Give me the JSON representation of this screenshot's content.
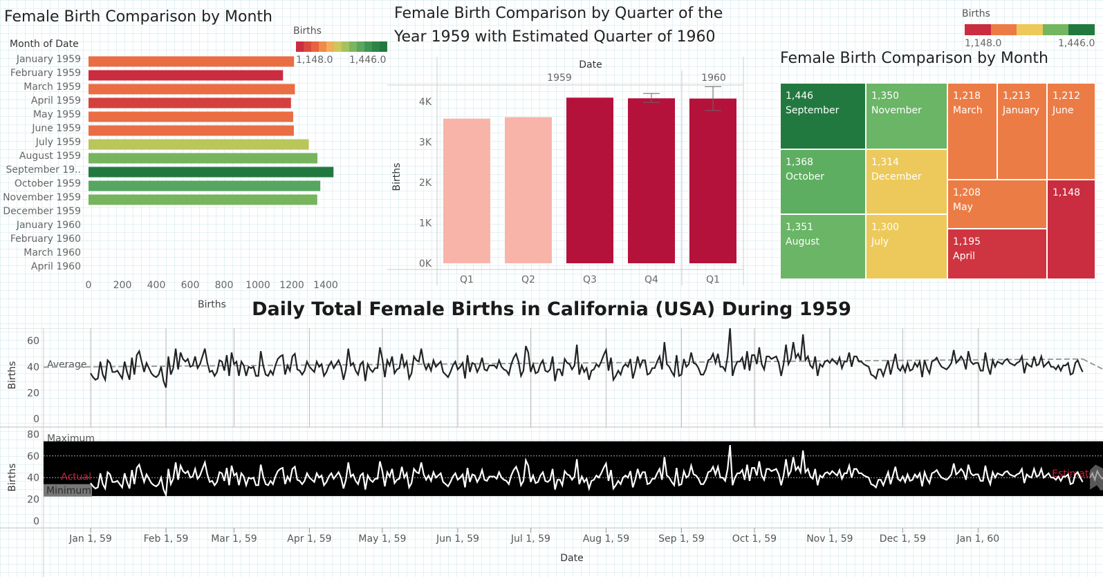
{
  "month_chart": {
    "title": "Female Birth Comparison by Month",
    "axis_header": "Month of Date",
    "legend_title": "Births",
    "legend_min": "1,148.0",
    "legend_max": "1,446.0",
    "xlabel": "Births",
    "ticks": [
      "0",
      "200",
      "400",
      "600",
      "800",
      "1000",
      "1200",
      "1400"
    ]
  },
  "quarter_chart": {
    "title_line1": "Female Birth Comparison by Quarter of the",
    "title_line2": "Year 1959 with Estimated Quarter of 1960",
    "date_header": "Date",
    "year1": "1959",
    "year2": "1960",
    "ylabel": "Births",
    "yticks": [
      "0K",
      "1K",
      "2K",
      "3K",
      "4K"
    ]
  },
  "treemap_chart": {
    "title": "Female Birth Comparison by Month",
    "legend_title": "Births",
    "legend_min": "1,148.0",
    "legend_max": "1,446.0"
  },
  "daily_chart": {
    "title": "Daily Total Female Births in California (USA) During 1959",
    "ylabel": "Births",
    "xlabel": "Date",
    "average_label": "Average",
    "maximum_label": "Maximum",
    "minimum_label": "Minimum",
    "actual_label": "Actual",
    "estimate_label": "Estimate",
    "yticks_top": [
      "0",
      "20",
      "40",
      "60"
    ],
    "yticks_bottom": [
      "0",
      "20",
      "40",
      "60",
      "80"
    ],
    "xticks": [
      "Jan 1, 59",
      "Feb 1, 59",
      "Mar 1, 59",
      "Apr 1, 59",
      "May 1, 59",
      "Jun 1, 59",
      "Jul 1, 59",
      "Aug 1, 59",
      "Sep 1, 59",
      "Oct 1, 59",
      "Nov 1, 59",
      "Dec 1, 59",
      "Jan 1, 60"
    ]
  },
  "colors": {
    "red": "#c92d3f",
    "orange": "#ec7c45",
    "yellow": "#ecc95a",
    "lightgreen": "#74b55f",
    "darkgreen": "#22793f",
    "pink": "#f8b4a8",
    "crimson": "#b5123b"
  },
  "chart_data": [
    {
      "type": "bar",
      "orientation": "horizontal",
      "categories": [
        "January 1959",
        "February 1959",
        "March 1959",
        "April 1959",
        "May 1959",
        "June 1959",
        "July 1959",
        "August 1959",
        "September 19..",
        "October 1959",
        "November 1959",
        "December 1959",
        "January 1960",
        "February 1960",
        "March 1960",
        "April 1960"
      ],
      "values": [
        1213,
        1148,
        1218,
        1195,
        1208,
        1212,
        1300,
        1351,
        1446,
        1368,
        1350,
        null,
        null,
        null,
        null,
        null
      ],
      "colors": [
        "#ea6d43",
        "#c92d3f",
        "#ea6d43",
        "#d3413e",
        "#ea6d43",
        "#ea6d43",
        "#b9c65a",
        "#76b45e",
        "#22793f",
        "#56a661",
        "#76b45e",
        null,
        null,
        null,
        null,
        null
      ],
      "xlim": [
        0,
        1500
      ],
      "xlabel": "Births",
      "ylabel": "Month of Date"
    },
    {
      "type": "bar",
      "categories": [
        "1959 Q1",
        "1959 Q2",
        "1959 Q3",
        "1959 Q4",
        "1960 Q1"
      ],
      "values": [
        3579,
        3615,
        4097,
        4081,
        4075
      ],
      "colors": [
        "#f8b4a8",
        "#f8b4a8",
        "#b5123b",
        "#b5123b",
        "#b5123b"
      ],
      "error": [
        [
          null,
          null
        ],
        [
          null,
          null
        ],
        [
          null,
          null
        ],
        [
          3980,
          4200
        ],
        [
          3780,
          4370
        ]
      ],
      "ylim": [
        0,
        4500
      ],
      "ylabel": "Births",
      "xlabel": "Date"
    },
    {
      "type": "treemap",
      "items": [
        {
          "value": "1,446",
          "label": "September",
          "color": "#22793f"
        },
        {
          "value": "1,350",
          "label": "November",
          "color": "#6ab566"
        },
        {
          "value": "1,218",
          "label": "March",
          "color": "#ec7c45"
        },
        {
          "value": "1,213",
          "label": "January",
          "color": "#ec7c45"
        },
        {
          "value": "1,212",
          "label": "June",
          "color": "#ec7c45"
        },
        {
          "value": "1,368",
          "label": "October",
          "color": "#5eae61"
        },
        {
          "value": "1,314",
          "label": "December",
          "color": "#ecc95a"
        },
        {
          "value": "1,208",
          "label": "May",
          "color": "#ec7c45"
        },
        {
          "value": "1,148",
          "label": "",
          "color": "#c92d3f"
        },
        {
          "value": "1,351",
          "label": "August",
          "color": "#6ab566"
        },
        {
          "value": "1,300",
          "label": "July",
          "color": "#ecc95a"
        },
        {
          "value": "1,195",
          "label": "April",
          "color": "#cf3540"
        }
      ]
    },
    {
      "type": "line",
      "x_start": "1959-01-01",
      "x_end": "1959-12-31",
      "xlim": [
        "1958-12-01",
        "1960-02-20"
      ],
      "ylim": [
        0,
        70
      ],
      "average_trend": [
        40,
        46
      ],
      "values": [
        35,
        32,
        30,
        31,
        44,
        34,
        30,
        45,
        43,
        36,
        36,
        37,
        34,
        31,
        44,
        36,
        30,
        47,
        34,
        49,
        52,
        44,
        36,
        43,
        39,
        35,
        33,
        32,
        34,
        40,
        29,
        24,
        48,
        34,
        39,
        54,
        38,
        51,
        46,
        44,
        46,
        40,
        41,
        48,
        39,
        42,
        48,
        54,
        43,
        36,
        37,
        33,
        36,
        45,
        44,
        37,
        49,
        33,
        51,
        42,
        44,
        33,
        44,
        41,
        33,
        40,
        39,
        40,
        33,
        33,
        52,
        41,
        34,
        33,
        37,
        34,
        41,
        46,
        48,
        49,
        34,
        41,
        37,
        48,
        50,
        38,
        37,
        34,
        37,
        44,
        40,
        38,
        36,
        44,
        40,
        42,
        33,
        36,
        41,
        44,
        39,
        42,
        45,
        40,
        30,
        38,
        54,
        41,
        43,
        37,
        34,
        42,
        44,
        29,
        42,
        38,
        36,
        39,
        39,
        55,
        46,
        32,
        45,
        41,
        48,
        35,
        38,
        39,
        50,
        40,
        44,
        31,
        35,
        48,
        45,
        44,
        54,
        43,
        38,
        42,
        37,
        45,
        40,
        42,
        44,
        36,
        34,
        32,
        36,
        41,
        44,
        38,
        40,
        43,
        31,
        49,
        36,
        43,
        42,
        36,
        40,
        47,
        38,
        37,
        41,
        41,
        41,
        39,
        45,
        40,
        38,
        37,
        34,
        42,
        47,
        50,
        44,
        33,
        37,
        56,
        51,
        36,
        42,
        35,
        36,
        42,
        45,
        37,
        36,
        38,
        48,
        29,
        38,
        38,
        33,
        46,
        43,
        42,
        38,
        41,
        57,
        34,
        41,
        36,
        39,
        30,
        37,
        38,
        42,
        40,
        44,
        49,
        53,
        37,
        47,
        30,
        33,
        37,
        34,
        40,
        42,
        40,
        46,
        31,
        38,
        48,
        40,
        45,
        45,
        34,
        35,
        39,
        39,
        44,
        48,
        38,
        59,
        42,
        40,
        36,
        33,
        49,
        33,
        34,
        46,
        40,
        42,
        51,
        43,
        42,
        39,
        34,
        34,
        38,
        45,
        46,
        50,
        43,
        50,
        40,
        40,
        37,
        48,
        70,
        33,
        40,
        44,
        44,
        47,
        38,
        52,
        37,
        49,
        49,
        42,
        55,
        42,
        38,
        48,
        48,
        46,
        47,
        48,
        43,
        33,
        42,
        57,
        42,
        46,
        59,
        47,
        50,
        45,
        65,
        45,
        48,
        41,
        39,
        48,
        33,
        42,
        40,
        44,
        45,
        43,
        46,
        44,
        42,
        47,
        39,
        44,
        44,
        51,
        40,
        48,
        48,
        44,
        44,
        42,
        41,
        40,
        34,
        33,
        31,
        38,
        38,
        33,
        39,
        45,
        34,
        42,
        50,
        39,
        37,
        41,
        36,
        43,
        37,
        38,
        43,
        40,
        44,
        32,
        45,
        39,
        35,
        44,
        45,
        47,
        43,
        40,
        39,
        38,
        40,
        43,
        53,
        43,
        45,
        48,
        45,
        38,
        52,
        44,
        42,
        43,
        43,
        37,
        37,
        51,
        40,
        34,
        45,
        40,
        44,
        43,
        42,
        45,
        46,
        43,
        42,
        41,
        43,
        44,
        48,
        35,
        43,
        41,
        40,
        48,
        41,
        42,
        48,
        40,
        42,
        44,
        40,
        40,
        38,
        41,
        37,
        41,
        41,
        43,
        34,
        35,
        43,
        45,
        40,
        36
      ]
    }
  ]
}
